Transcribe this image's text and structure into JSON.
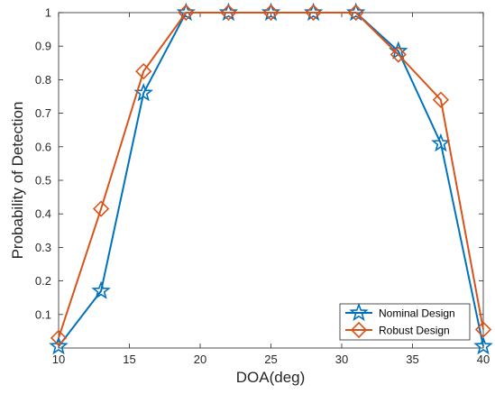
{
  "chart_data": {
    "type": "line",
    "xlabel": "DOA(deg)",
    "ylabel": "Probability of Detection",
    "xlim": [
      10,
      40
    ],
    "ylim": [
      0,
      1
    ],
    "xticks": [
      10,
      15,
      20,
      25,
      30,
      35,
      40
    ],
    "yticks": [
      0.1,
      0.2,
      0.3,
      0.4,
      0.5,
      0.6,
      0.7,
      0.8,
      0.9,
      1
    ],
    "x": [
      10,
      13,
      16,
      19,
      22,
      25,
      28,
      31,
      34,
      37,
      40
    ],
    "series": [
      {
        "name": "Nominal Design",
        "values": [
          0.005,
          0.17,
          0.76,
          1,
          1,
          1,
          1,
          1,
          0.885,
          0.61,
          0.005
        ],
        "color": "#0072BD",
        "marker": "star"
      },
      {
        "name": "Robust Design",
        "values": [
          0.03,
          0.415,
          0.825,
          1,
          1,
          1,
          1,
          1,
          0.875,
          0.74,
          0.055
        ],
        "color": "#D95319",
        "marker": "diamond"
      }
    ],
    "grid": false,
    "legend_position": "bottom-right"
  }
}
